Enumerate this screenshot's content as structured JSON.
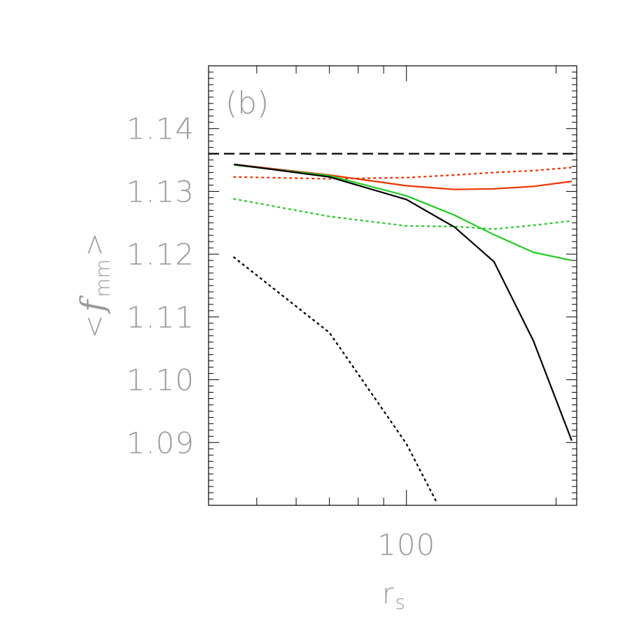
{
  "chart_data": {
    "type": "line",
    "panel_label": "(b)",
    "xlabel": "r",
    "xlabel_subscript": "s",
    "ylabel_left": "<",
    "ylabel_symbol": "f",
    "ylabel_subscript": "mm",
    "ylabel_right": ">",
    "xscale": "log",
    "xlim": [
      40,
      220
    ],
    "ylim": [
      1.08,
      1.15
    ],
    "x_tick_labels": [
      {
        "value": 100,
        "label": "100"
      }
    ],
    "y_tick_labels": [
      {
        "value": 1.09,
        "label": "1.09"
      },
      {
        "value": 1.1,
        "label": "1.10"
      },
      {
        "value": 1.11,
        "label": "1.11"
      },
      {
        "value": 1.12,
        "label": "1.12"
      },
      {
        "value": 1.13,
        "label": "1.13"
      },
      {
        "value": 1.14,
        "label": "1.14"
      }
    ],
    "grid": false,
    "legend": "none",
    "reference_line": {
      "y": 1.136,
      "color": "#000000",
      "style": "dashed"
    },
    "series": [
      {
        "color": "#000000",
        "style": "solid",
        "x": [
          45,
          70,
          100,
          125,
          150,
          180,
          215
        ],
        "y": [
          1.1343,
          1.1323,
          1.1287,
          1.1243,
          1.1188,
          1.1062,
          1.0903
        ]
      },
      {
        "color": "#000000",
        "style": "dotted",
        "x": [
          45,
          70,
          100,
          115
        ],
        "y": [
          1.1195,
          1.1075,
          1.0898,
          1.0805
        ]
      },
      {
        "color": "#22cc22",
        "style": "solid",
        "x": [
          45,
          70,
          100,
          125,
          150,
          180,
          215
        ],
        "y": [
          1.1342,
          1.1325,
          1.1293,
          1.1262,
          1.1231,
          1.1203,
          1.119
        ]
      },
      {
        "color": "#22cc22",
        "style": "dotted",
        "x": [
          45,
          70,
          100,
          125,
          150,
          180,
          215
        ],
        "y": [
          1.1288,
          1.126,
          1.1245,
          1.1244,
          1.124,
          1.1246,
          1.1253
        ]
      },
      {
        "color": "#ee3300",
        "style": "solid",
        "x": [
          45,
          70,
          100,
          125,
          150,
          180,
          215
        ],
        "y": [
          1.1343,
          1.1326,
          1.1309,
          1.1303,
          1.1304,
          1.1308,
          1.1316
        ]
      },
      {
        "color": "#ee3300",
        "style": "dotted",
        "x": [
          45,
          70,
          100,
          125,
          150,
          180,
          215
        ],
        "y": [
          1.1323,
          1.132,
          1.1322,
          1.1326,
          1.133,
          1.1333,
          1.1338
        ]
      }
    ]
  }
}
